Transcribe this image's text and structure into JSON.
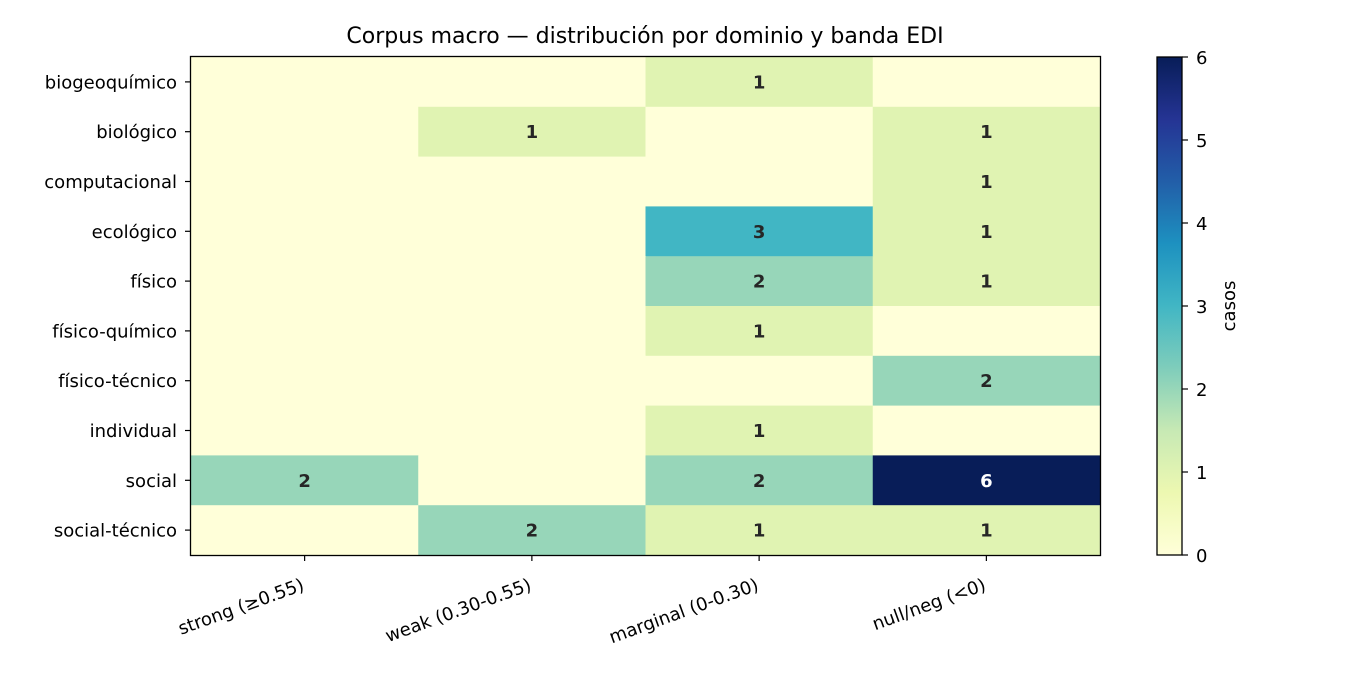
{
  "chart_data": {
    "type": "heatmap",
    "title": "Corpus macro — distribución por dominio y banda EDI",
    "xlabel": "",
    "ylabel": "",
    "x_categories": [
      "strong (≥0.55)",
      "weak (0.30-0.55)",
      "marginal (0-0.30)",
      "null/neg (<0)"
    ],
    "y_categories": [
      "biogeoquímico",
      "biológico",
      "computacional",
      "ecológico",
      "físico",
      "físico-químico",
      "físico-técnico",
      "individual",
      "social",
      "social-técnico"
    ],
    "values": [
      [
        0,
        0,
        1,
        0
      ],
      [
        0,
        1,
        0,
        1
      ],
      [
        0,
        0,
        0,
        1
      ],
      [
        0,
        0,
        3,
        1
      ],
      [
        0,
        0,
        2,
        1
      ],
      [
        0,
        0,
        1,
        0
      ],
      [
        0,
        0,
        0,
        2
      ],
      [
        0,
        0,
        1,
        0
      ],
      [
        2,
        0,
        2,
        6
      ],
      [
        0,
        2,
        1,
        1
      ]
    ],
    "annotate_zero": false,
    "colormap": "YlGnBu",
    "colorbar": {
      "label": "casos",
      "range": [
        0,
        6
      ],
      "ticks": [
        "0",
        "1",
        "2",
        "3",
        "4",
        "5",
        "6"
      ]
    }
  }
}
